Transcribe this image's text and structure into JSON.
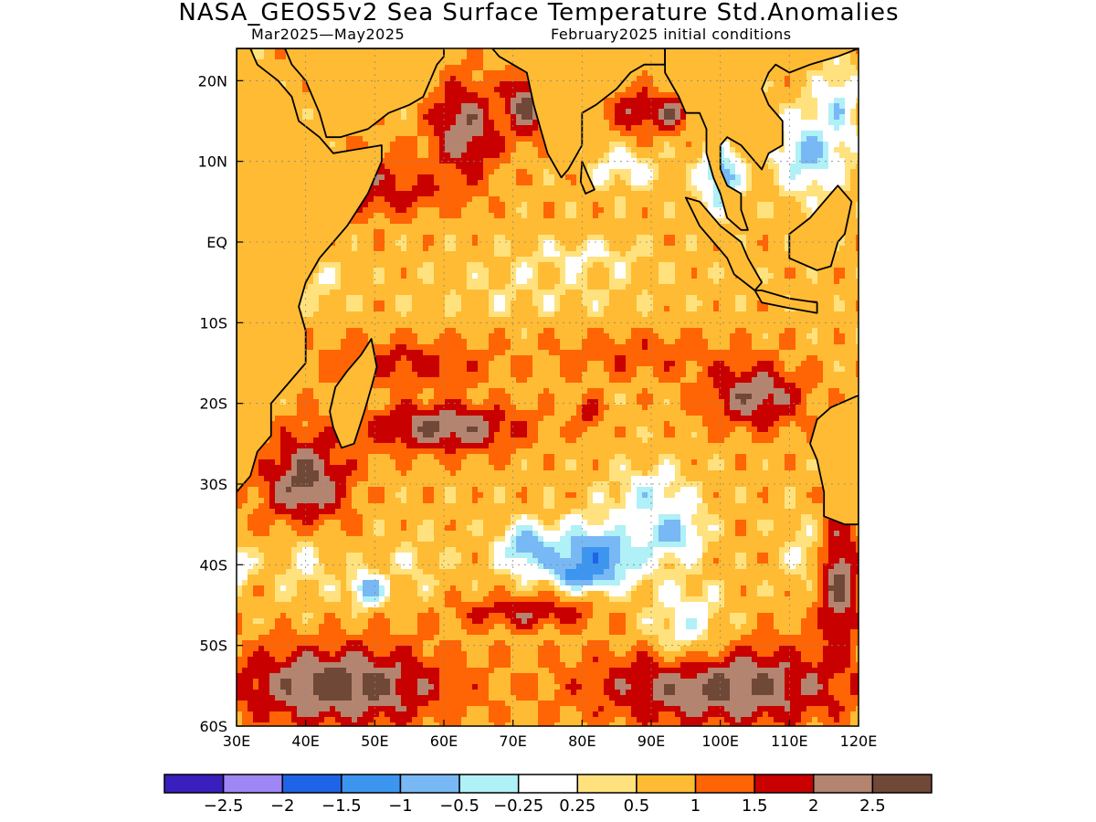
{
  "title": "NASA_GEOS5v2 Sea Surface Temperature Std.Anomalies",
  "subtitle_left": "Mar2025—May2025",
  "subtitle_right": "February2025 initial conditions",
  "map": {
    "lon_range": [
      30,
      120
    ],
    "lat_range": [
      -60,
      24
    ],
    "lon_ticks": [
      "30E",
      "40E",
      "50E",
      "60E",
      "70E",
      "80E",
      "90E",
      "100E",
      "110E",
      "120E"
    ],
    "lat_ticks": [
      "20N",
      "10N",
      "EQ",
      "10S",
      "20S",
      "30S",
      "40S",
      "50S",
      "60S"
    ],
    "land_color": "#ffbb33",
    "coast_color": "#000000",
    "grid_style": "dotted"
  },
  "colorbar": {
    "colors": [
      "#3b1fbd",
      "#9f86f5",
      "#1f64e6",
      "#3c96f0",
      "#78b8f5",
      "#b0f0f7",
      "#ffffff",
      "#ffe27e",
      "#ffbb33",
      "#ff6405",
      "#c80000",
      "#b38470",
      "#704838"
    ],
    "labels": [
      "−2.5",
      "−2",
      "−1.5",
      "−1",
      "−0.5",
      "−0.25",
      "0.25",
      "0.5",
      "1",
      "1.5",
      "2",
      "2.5"
    ]
  },
  "anomaly_fields": [
    {
      "lon": 35,
      "lat": 12,
      "value": 2.0,
      "sx": 3,
      "sy": 5
    },
    {
      "lon": 50,
      "lat": 7,
      "value": 1.8,
      "sx": 6,
      "sy": 4
    },
    {
      "lon": 63,
      "lat": 14,
      "value": 2.4,
      "sx": 5,
      "sy": 6
    },
    {
      "lon": 72,
      "lat": 17,
      "value": 2.6,
      "sx": 3,
      "sy": 4
    },
    {
      "lon": 88,
      "lat": 16,
      "value": 2.0,
      "sx": 4,
      "sy": 3
    },
    {
      "lon": 93,
      "lat": 16,
      "value": 2.5,
      "sx": 2,
      "sy": 2
    },
    {
      "lon": 86,
      "lat": 9,
      "value": 0.1,
      "sx": 5,
      "sy": 3
    },
    {
      "lon": 113,
      "lat": 11,
      "value": -0.6,
      "sx": 5,
      "sy": 5
    },
    {
      "lon": 100,
      "lat": 8,
      "value": -0.8,
      "sx": 3,
      "sy": 4
    },
    {
      "lon": 117,
      "lat": 17,
      "value": -0.3,
      "sx": 3,
      "sy": 5
    },
    {
      "lon": 55,
      "lat": 6,
      "value": 1.6,
      "sx": 8,
      "sy": 2
    },
    {
      "lon": 80,
      "lat": -2,
      "value": 0.1,
      "sx": 9,
      "sy": 2
    },
    {
      "lon": 72,
      "lat": -6,
      "value": 0.2,
      "sx": 5,
      "sy": 2
    },
    {
      "lon": 42,
      "lat": -5,
      "value": 0.3,
      "sx": 4,
      "sy": 3
    },
    {
      "lon": 75,
      "lat": -6,
      "value": 0.45,
      "sx": 18,
      "sy": 4
    },
    {
      "lon": 55,
      "lat": -15,
      "value": 1.7,
      "sx": 12,
      "sy": 3
    },
    {
      "lon": 88,
      "lat": -14,
      "value": 1.4,
      "sx": 12,
      "sy": 3
    },
    {
      "lon": 60,
      "lat": -23,
      "value": 2.5,
      "sx": 11,
      "sy": 3
    },
    {
      "lon": 105,
      "lat": -19,
      "value": 2.4,
      "sx": 7,
      "sy": 4
    },
    {
      "lon": 81,
      "lat": -21,
      "value": 1.8,
      "sx": 2,
      "sy": 2
    },
    {
      "lon": 40,
      "lat": -30,
      "value": 2.7,
      "sx": 6,
      "sy": 6
    },
    {
      "lon": 45,
      "lat": -55,
      "value": 2.8,
      "sx": 15,
      "sy": 5
    },
    {
      "lon": 100,
      "lat": -55,
      "value": 2.7,
      "sx": 18,
      "sy": 5
    },
    {
      "lon": 117,
      "lat": -42,
      "value": 2.6,
      "sx": 3,
      "sy": 8
    },
    {
      "lon": 80,
      "lat": -41,
      "value": -2.0,
      "sx": 3,
      "sy": 1.5
    },
    {
      "lon": 82,
      "lat": -39,
      "value": -1.2,
      "sx": 7,
      "sy": 4
    },
    {
      "lon": 72,
      "lat": -38,
      "value": -0.8,
      "sx": 4,
      "sy": 3
    },
    {
      "lon": 93,
      "lat": -36,
      "value": -0.9,
      "sx": 4,
      "sy": 3
    },
    {
      "lon": 90,
      "lat": -32,
      "value": -0.2,
      "sx": 6,
      "sy": 4
    },
    {
      "lon": 95,
      "lat": -47,
      "value": 0.0,
      "sx": 6,
      "sy": 5
    },
    {
      "lon": 49,
      "lat": -43,
      "value": -1.0,
      "sx": 2.5,
      "sy": 2
    },
    {
      "lon": 40,
      "lat": -40,
      "value": 0.3,
      "sx": 5,
      "sy": 5
    },
    {
      "lon": 56,
      "lat": -40,
      "value": 0.4,
      "sx": 5,
      "sy": 4
    },
    {
      "lon": 112,
      "lat": -38,
      "value": 0.3,
      "sx": 3,
      "sy": 5
    },
    {
      "lon": 72,
      "lat": -46,
      "value": 1.9,
      "sx": 10,
      "sy": 2
    },
    {
      "lon": 30,
      "lat": -40,
      "value": -0.5,
      "sx": 2,
      "sy": 2
    }
  ],
  "continents": {
    "africa": [
      [
        30,
        24
      ],
      [
        32,
        24
      ],
      [
        33,
        22
      ],
      [
        36,
        20
      ],
      [
        38,
        18
      ],
      [
        39,
        15
      ],
      [
        42,
        13
      ],
      [
        43,
        12
      ],
      [
        44,
        11
      ],
      [
        51,
        12
      ],
      [
        51,
        10
      ],
      [
        49,
        6
      ],
      [
        46,
        2
      ],
      [
        42,
        -2
      ],
      [
        40,
        -5
      ],
      [
        39,
        -8
      ],
      [
        40,
        -11
      ],
      [
        40,
        -15
      ],
      [
        37,
        -18
      ],
      [
        35,
        -20
      ],
      [
        35,
        -24
      ],
      [
        33,
        -26
      ],
      [
        32,
        -29
      ],
      [
        30,
        -31
      ],
      [
        30,
        24
      ]
    ],
    "arabia": [
      [
        30,
        24
      ],
      [
        30,
        24
      ],
      [
        37,
        24
      ],
      [
        38,
        22
      ],
      [
        40,
        20
      ],
      [
        42,
        16
      ],
      [
        43,
        13
      ],
      [
        45,
        13
      ],
      [
        49,
        14
      ],
      [
        52,
        16
      ],
      [
        55,
        17
      ],
      [
        57,
        18
      ],
      [
        58,
        20
      ],
      [
        59,
        22
      ],
      [
        60,
        23
      ],
      [
        60,
        24
      ],
      [
        30,
        24
      ]
    ],
    "india": [
      [
        67,
        24
      ],
      [
        68,
        23
      ],
      [
        70,
        22
      ],
      [
        72,
        21
      ],
      [
        73,
        17
      ],
      [
        74,
        14
      ],
      [
        75,
        11
      ],
      [
        77,
        8
      ],
      [
        78,
        9
      ],
      [
        80,
        12
      ],
      [
        80,
        16
      ],
      [
        82,
        17
      ],
      [
        85,
        19
      ],
      [
        87,
        21
      ],
      [
        89,
        22
      ],
      [
        90,
        22
      ],
      [
        92,
        22
      ],
      [
        92,
        24
      ],
      [
        67,
        24
      ]
    ],
    "sri_lanka": [
      [
        80,
        10
      ],
      [
        81,
        8
      ],
      [
        81.8,
        6.5
      ],
      [
        80.5,
        6
      ],
      [
        79.8,
        7.5
      ],
      [
        80,
        10
      ]
    ],
    "se_asia": [
      [
        92,
        24
      ],
      [
        92,
        21
      ],
      [
        94,
        18
      ],
      [
        95,
        16
      ],
      [
        97,
        16
      ],
      [
        98,
        14
      ],
      [
        98,
        11
      ],
      [
        99,
        8
      ],
      [
        100,
        6
      ],
      [
        101,
        3
      ],
      [
        103,
        1.5
      ],
      [
        104,
        1.5
      ],
      [
        103,
        4
      ],
      [
        103,
        6
      ],
      [
        101,
        7
      ],
      [
        100,
        9
      ],
      [
        100,
        12
      ],
      [
        101,
        13
      ],
      [
        103,
        12
      ],
      [
        105,
        10
      ],
      [
        106,
        9
      ],
      [
        107,
        11
      ],
      [
        109,
        12
      ],
      [
        109,
        15
      ],
      [
        107,
        17
      ],
      [
        106,
        19
      ],
      [
        107,
        21
      ],
      [
        108,
        22
      ],
      [
        110,
        21
      ],
      [
        113,
        22
      ],
      [
        117,
        23
      ],
      [
        120,
        24
      ],
      [
        92,
        24
      ]
    ],
    "sumatra": [
      [
        95,
        5.5
      ],
      [
        97,
        5
      ],
      [
        100,
        2
      ],
      [
        103,
        0
      ],
      [
        104,
        -2
      ],
      [
        106,
        -5
      ],
      [
        105,
        -6
      ],
      [
        102,
        -4
      ],
      [
        101,
        -2
      ],
      [
        99,
        0
      ],
      [
        97,
        2
      ],
      [
        95,
        5.5
      ]
    ],
    "java": [
      [
        105,
        -6
      ],
      [
        106,
        -6
      ],
      [
        110,
        -7
      ],
      [
        114,
        -7.5
      ],
      [
        114,
        -8.8
      ],
      [
        110,
        -8.2
      ],
      [
        106,
        -7.5
      ],
      [
        105,
        -6
      ]
    ],
    "borneo": [
      [
        110,
        1
      ],
      [
        110,
        -2
      ],
      [
        114,
        -3.5
      ],
      [
        116,
        -3
      ],
      [
        117,
        0
      ],
      [
        118,
        1
      ],
      [
        119,
        5
      ],
      [
        117,
        7
      ],
      [
        116,
        6
      ],
      [
        113,
        3
      ],
      [
        110,
        1
      ]
    ],
    "australia": [
      [
        114,
        -22
      ],
      [
        116,
        -20.5
      ],
      [
        120,
        -19
      ],
      [
        120,
        -35
      ],
      [
        118,
        -35
      ],
      [
        115,
        -34
      ],
      [
        115,
        -31
      ],
      [
        114,
        -27
      ],
      [
        113,
        -25
      ],
      [
        114,
        -22
      ]
    ],
    "madagascar": [
      [
        49.5,
        -12
      ],
      [
        50.3,
        -15.5
      ],
      [
        49.5,
        -18
      ],
      [
        48.5,
        -21
      ],
      [
        47,
        -25
      ],
      [
        45.2,
        -25.5
      ],
      [
        44,
        -23
      ],
      [
        43.5,
        -21
      ],
      [
        44.3,
        -18
      ],
      [
        46,
        -16
      ],
      [
        48,
        -14
      ],
      [
        49.5,
        -12
      ]
    ]
  }
}
